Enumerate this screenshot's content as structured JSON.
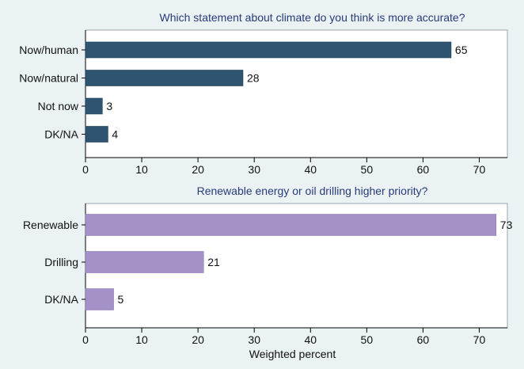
{
  "chart_data": [
    {
      "type": "bar",
      "orientation": "horizontal",
      "title": "Which statement about climate do you think is more accurate?",
      "categories": [
        "Now/human",
        "Now/natural",
        "Not now",
        "DK/NA"
      ],
      "values": [
        65,
        28,
        3,
        4
      ],
      "value_labels": [
        "65",
        "28",
        "3",
        "4"
      ],
      "xlim": [
        0,
        75
      ],
      "xticks": [
        0,
        10,
        20,
        30,
        40,
        50,
        60,
        70
      ],
      "xlabel": "",
      "grid": false,
      "colors": {
        "bar": "#2e5470",
        "title": "#2a3a7a"
      }
    },
    {
      "type": "bar",
      "orientation": "horizontal",
      "title": "Renewable energy or oil drilling higher priority?",
      "categories": [
        "Renewable",
        "Drilling",
        "DK/NA"
      ],
      "values": [
        73,
        21,
        5
      ],
      "value_labels": [
        "73",
        "21",
        "5"
      ],
      "xlim": [
        0,
        75
      ],
      "xticks": [
        0,
        10,
        20,
        30,
        40,
        50,
        60,
        70
      ],
      "xlabel": "Weighted percent",
      "grid": false,
      "colors": {
        "bar": "#a491c8",
        "title": "#2a3a7a"
      }
    }
  ]
}
